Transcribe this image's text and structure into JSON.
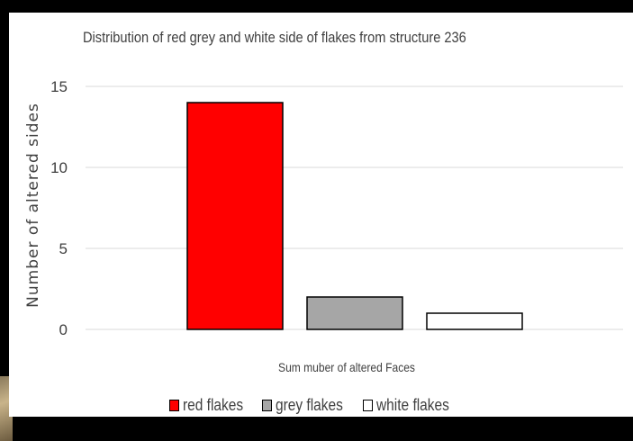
{
  "chart_data": {
    "type": "bar",
    "title": "Distribution of red grey and white side of flakes  from structure 236",
    "xlabel": "Sum muber of altered Faces",
    "ylabel": "Number of altered sides",
    "ylim": [
      0,
      15
    ],
    "yticks": [
      0,
      5,
      10,
      15
    ],
    "grid": true,
    "legend_position": "bottom",
    "categories": [
      "Sum muber of altered Faces"
    ],
    "series": [
      {
        "name": "red flakes",
        "values": [
          14
        ],
        "color": "#ff0000"
      },
      {
        "name": "grey flakes",
        "values": [
          2
        ],
        "color": "#a6a6a6"
      },
      {
        "name": "white flakes",
        "values": [
          1
        ],
        "color": "#ffffff"
      }
    ]
  }
}
